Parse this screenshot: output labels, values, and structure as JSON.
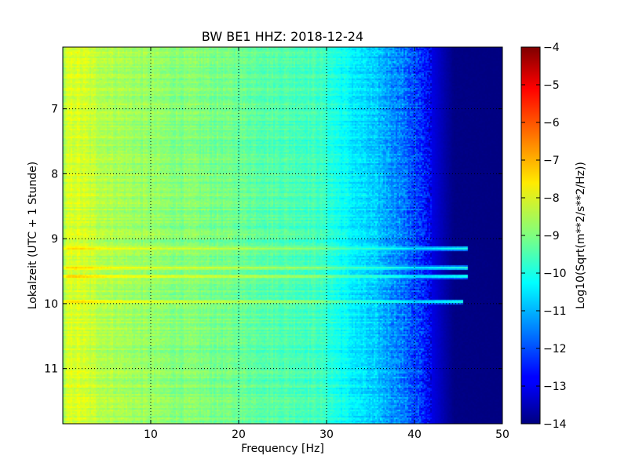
{
  "chart_data": {
    "type": "heatmap",
    "title": "BW BE1 HHZ: 2018-12-24",
    "xlabel": "Frequency [Hz]",
    "ylabel": "Lokalzeit (UTC + 1 Stunde)",
    "xlim": [
      0,
      50
    ],
    "ylim": [
      6.05,
      11.85
    ],
    "y_inverted": true,
    "x_ticks": [
      10,
      20,
      30,
      40,
      50
    ],
    "x_tick_labels": [
      "10",
      "20",
      "30",
      "40",
      "50"
    ],
    "y_ticks": [
      7,
      8,
      9,
      10,
      11
    ],
    "y_tick_labels": [
      "7",
      "8",
      "9",
      "10",
      "11"
    ],
    "grid": true,
    "colormap": "jet",
    "colorbar": {
      "label": "Log10(Sqrt(m**2/s**2/Hz))",
      "range": [
        -14,
        -4
      ],
      "ticks": [
        -4,
        -5,
        -6,
        -7,
        -8,
        -9,
        -10,
        -11,
        -12,
        -13,
        -14
      ],
      "tick_labels": [
        "−4",
        "−5",
        "−6",
        "−7",
        "−8",
        "−9",
        "−10",
        "−11",
        "−12",
        "−13",
        "−14"
      ]
    },
    "background_profile": {
      "frequency_hz": [
        0,
        0.5,
        1.5,
        3,
        5,
        8,
        12,
        18,
        24,
        29,
        31,
        33,
        36,
        38.5,
        40.5,
        42,
        43.5,
        44.5,
        50
      ],
      "log_psd": [
        -8.9,
        -8.2,
        -8.1,
        -8.3,
        -8.5,
        -8.7,
        -8.9,
        -9.1,
        -9.4,
        -9.6,
        -10.0,
        -10.4,
        -10.9,
        -11.5,
        -12.2,
        -13.0,
        -13.6,
        -13.95,
        -14.0
      ]
    },
    "bands": [
      {
        "time": 9.15,
        "max_frequency_hz": 46,
        "offset": 0.9
      },
      {
        "time": 9.45,
        "max_frequency_hz": 46,
        "offset": 0.95
      },
      {
        "time": 9.58,
        "max_frequency_hz": 46,
        "offset": 1.15
      },
      {
        "time": 9.97,
        "max_frequency_hz": 45.5,
        "offset": 1.0
      }
    ]
  }
}
